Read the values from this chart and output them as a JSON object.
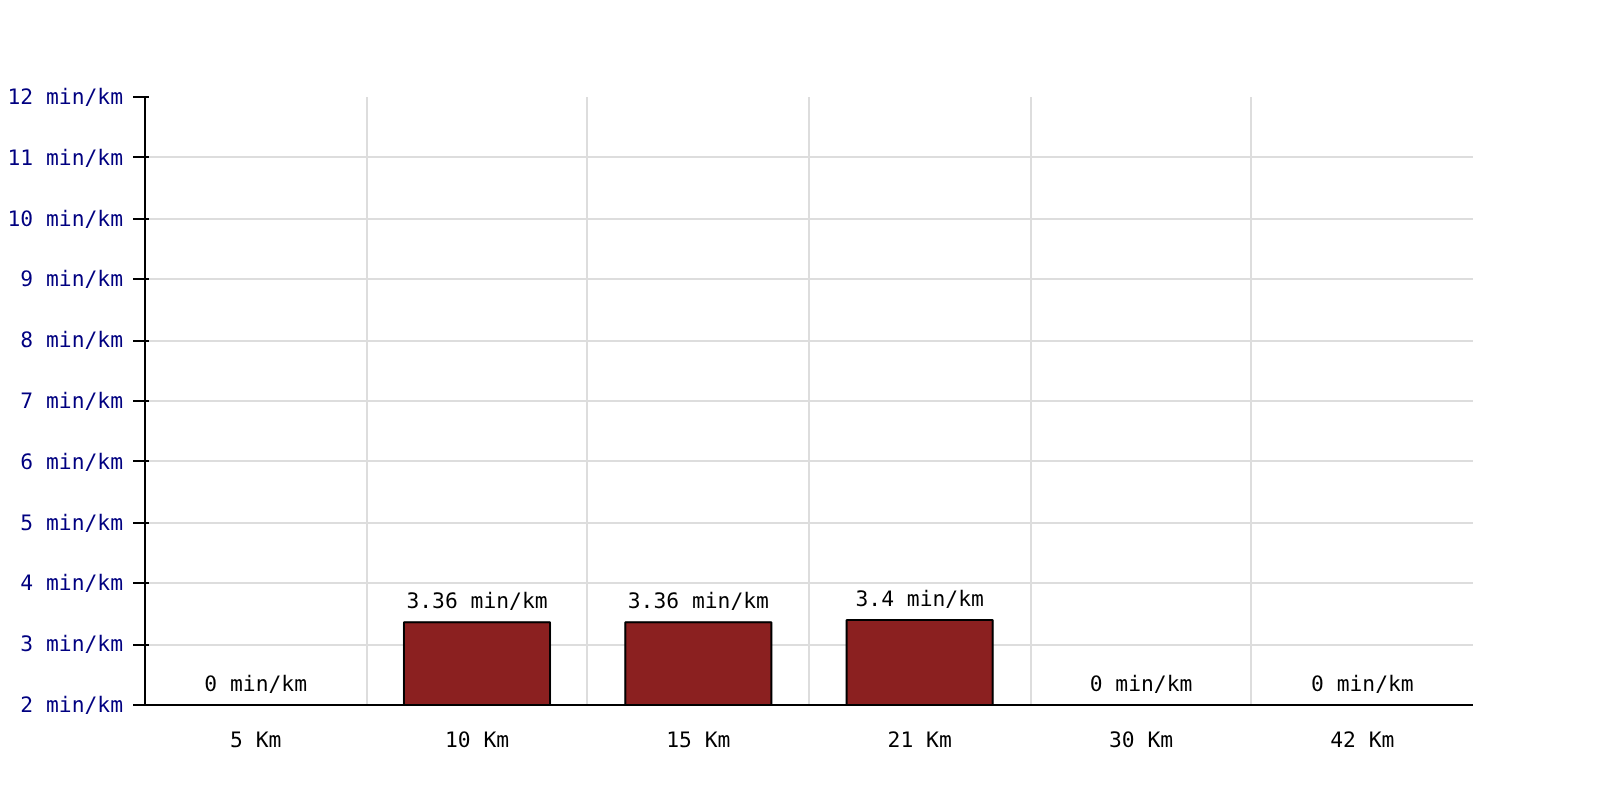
{
  "chart_data": {
    "type": "bar",
    "categories": [
      "5 Km",
      "10 Km",
      "15 Km",
      "21 Km",
      "30 Km",
      "42 Km"
    ],
    "values": [
      null,
      3.36,
      3.36,
      3.4,
      null,
      null
    ],
    "value_labels": [
      "0 min/km",
      "3.36 min/km",
      "3.36 min/km",
      "3.4 min/km",
      "0 min/km",
      "0 min/km"
    ],
    "color": "#8b2020",
    "ylim": [
      2,
      12
    ],
    "yticks": [
      {
        "value": 2,
        "label": "2 min/km"
      },
      {
        "value": 3,
        "label": "3 min/km"
      },
      {
        "value": 4,
        "label": "4 min/km"
      },
      {
        "value": 5,
        "label": "5 min/km"
      },
      {
        "value": 6,
        "label": "6 min/km"
      },
      {
        "value": 7,
        "label": "7 min/km"
      },
      {
        "value": 8,
        "label": "8 min/km"
      },
      {
        "value": 9,
        "label": "9 min/km"
      },
      {
        "value": 10,
        "label": "10 min/km"
      },
      {
        "value": 11,
        "label": "11 min/km"
      },
      {
        "value": 12,
        "label": "12 min/km"
      }
    ],
    "grid": true
  }
}
